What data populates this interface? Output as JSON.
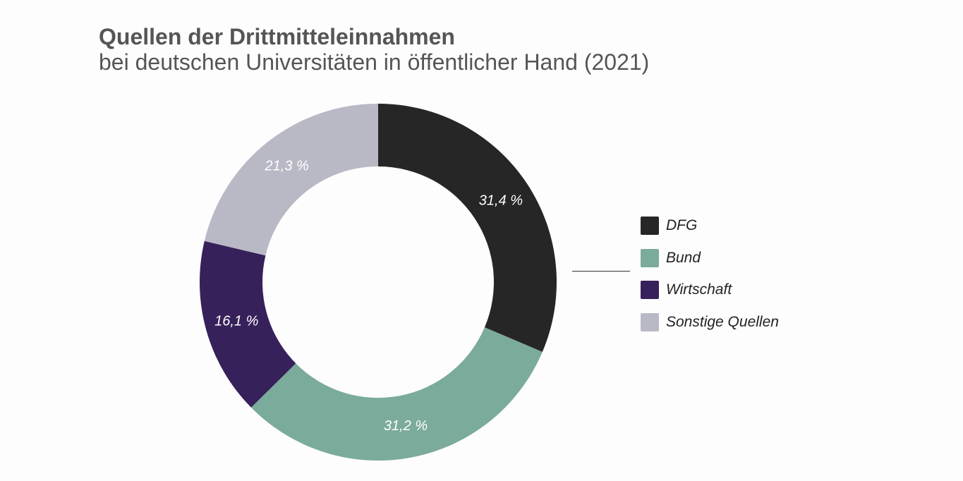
{
  "chart_data": {
    "type": "pie",
    "variant": "donut",
    "title": "Quellen der Drittmitteleinnahmen",
    "subtitle": "bei deutschen Universitäten in öffentlicher Hand (2021)",
    "unit": "%",
    "legend_placement": "right",
    "slices": [
      {
        "name": "DFG",
        "value": 31.4,
        "label": "31,4 %",
        "color": "#262626"
      },
      {
        "name": "Bund",
        "value": 31.2,
        "label": "31,2 %",
        "color": "#7bab9b"
      },
      {
        "name": "Wirtschaft",
        "value": 16.1,
        "label": "16,1 %",
        "color": "#36215a"
      },
      {
        "name": "Sonstige Quellen",
        "value": 21.3,
        "label": "21,3 %",
        "color": "#b9b8c5"
      }
    ]
  }
}
